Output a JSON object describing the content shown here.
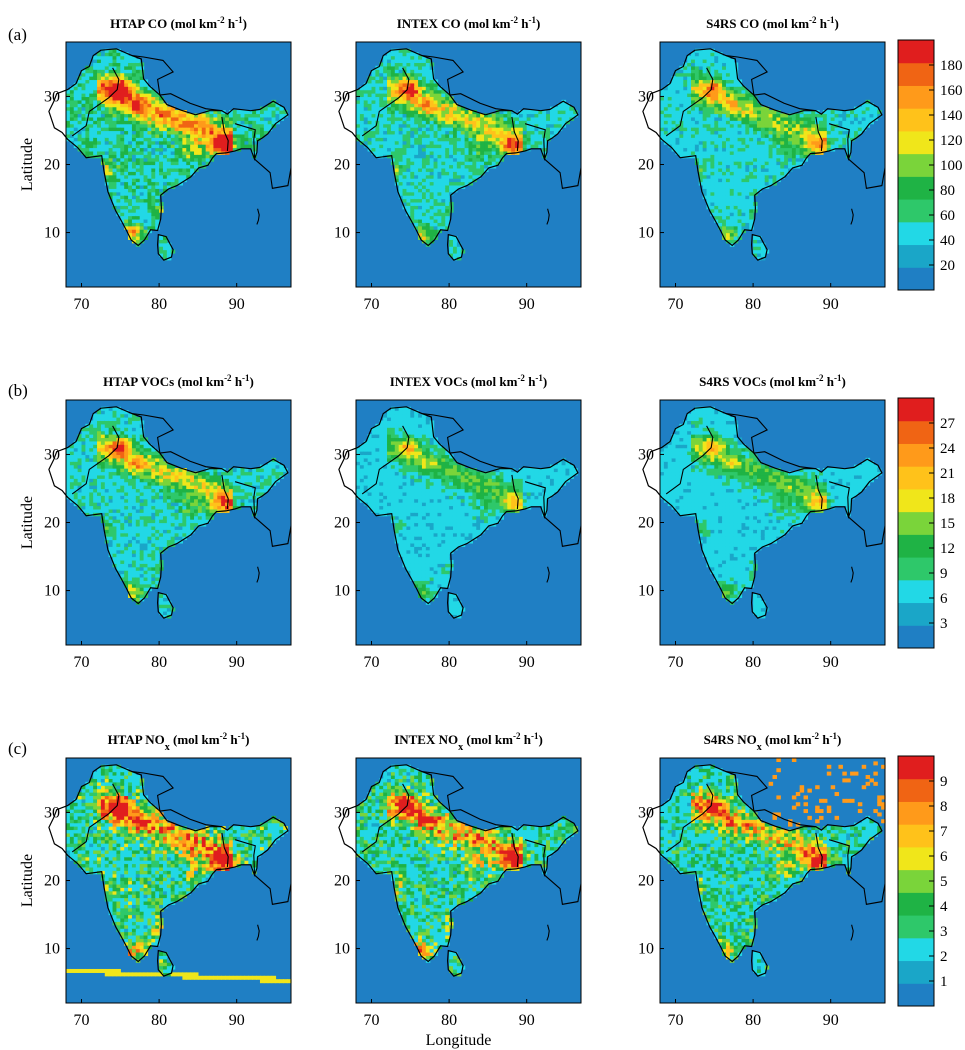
{
  "figure": {
    "x_axis_label": "Longitude",
    "y_axis_label": "Latitude"
  },
  "colors": {
    "ocean": "#1f7fc4",
    "land_outline": "#000000",
    "scale": [
      "#1f7fc4",
      "#1aa6c8",
      "#22d8e6",
      "#2ec86a",
      "#1fb345",
      "#7ad43a",
      "#f0e61a",
      "#ffc21a",
      "#ff9a1a",
      "#f06414",
      "#e01e1e"
    ]
  },
  "chart_data": [
    {
      "type": "heatmap",
      "row": "(a)",
      "species": "CO",
      "x_ticks": [
        70,
        80,
        90
      ],
      "y_ticks": [
        10,
        20,
        30
      ],
      "xlim": [
        68,
        97
      ],
      "ylim": [
        2,
        38
      ],
      "colorbar": {
        "ticks": [
          20,
          40,
          60,
          80,
          100,
          120,
          140,
          160,
          180
        ],
        "max": 200
      },
      "panels": [
        {
          "inventory": "HTAP",
          "title": "HTAP CO (mol km",
          "unit_mid": " h",
          "unit_end": ")",
          "exp1": "-2",
          "exp2": "-1",
          "intensity": 0.82
        },
        {
          "inventory": "INTEX",
          "title": "INTEX CO (mol km",
          "unit_mid": " h",
          "unit_end": ")",
          "exp1": "-2",
          "exp2": "-1",
          "intensity": 0.62
        },
        {
          "inventory": "S4RS",
          "title": "S4RS CO (mol km",
          "unit_mid": " h",
          "unit_end": ")",
          "exp1": "-2",
          "exp2": "-1",
          "intensity": 0.55
        }
      ]
    },
    {
      "type": "heatmap",
      "row": "(b)",
      "species": "VOCs",
      "x_ticks": [
        70,
        80,
        90
      ],
      "y_ticks": [
        10,
        20,
        30
      ],
      "xlim": [
        68,
        97
      ],
      "ylim": [
        2,
        38
      ],
      "colorbar": {
        "ticks": [
          3,
          6,
          9,
          12,
          15,
          18,
          21,
          24,
          27
        ],
        "max": 30
      },
      "panels": [
        {
          "inventory": "HTAP",
          "title": "HTAP VOCs (mol km",
          "unit_mid": " h",
          "unit_end": ")",
          "exp1": "-2",
          "exp2": "-1",
          "intensity": 0.6
        },
        {
          "inventory": "INTEX",
          "title": "INTEX VOCs (mol km",
          "unit_mid": " h",
          "unit_end": ")",
          "exp1": "-2",
          "exp2": "-1",
          "intensity": 0.42
        },
        {
          "inventory": "S4RS",
          "title": "S4RS VOCs (mol km",
          "unit_mid": " h",
          "unit_end": ")",
          "exp1": "-2",
          "exp2": "-1",
          "intensity": 0.45
        }
      ]
    },
    {
      "type": "heatmap",
      "row": "(c)",
      "species": "NOx",
      "x_ticks": [
        70,
        80,
        90
      ],
      "y_ticks": [
        10,
        20,
        30
      ],
      "xlim": [
        68,
        97
      ],
      "ylim": [
        2,
        38
      ],
      "colorbar": {
        "ticks": [
          1,
          2,
          3,
          4,
          5,
          6,
          7,
          8,
          9
        ],
        "max": 10
      },
      "panels": [
        {
          "inventory": "HTAP",
          "title": "HTAP NO",
          "sub": "x",
          "unit_pre": " (mol km",
          "unit_mid": " h",
          "unit_end": ")",
          "exp1": "-2",
          "exp2": "-1",
          "intensity": 0.85
        },
        {
          "inventory": "INTEX",
          "title": "INTEX NO",
          "sub": "x",
          "unit_pre": " (mol km",
          "unit_mid": " h",
          "unit_end": ")",
          "exp1": "-2",
          "exp2": "-1",
          "intensity": 0.8
        },
        {
          "inventory": "S4RS",
          "title": "S4RS NO",
          "sub": "x",
          "unit_pre": " (mol km",
          "unit_mid": " h",
          "unit_end": ")",
          "exp1": "-2",
          "exp2": "-1",
          "intensity": 0.7
        }
      ]
    }
  ]
}
